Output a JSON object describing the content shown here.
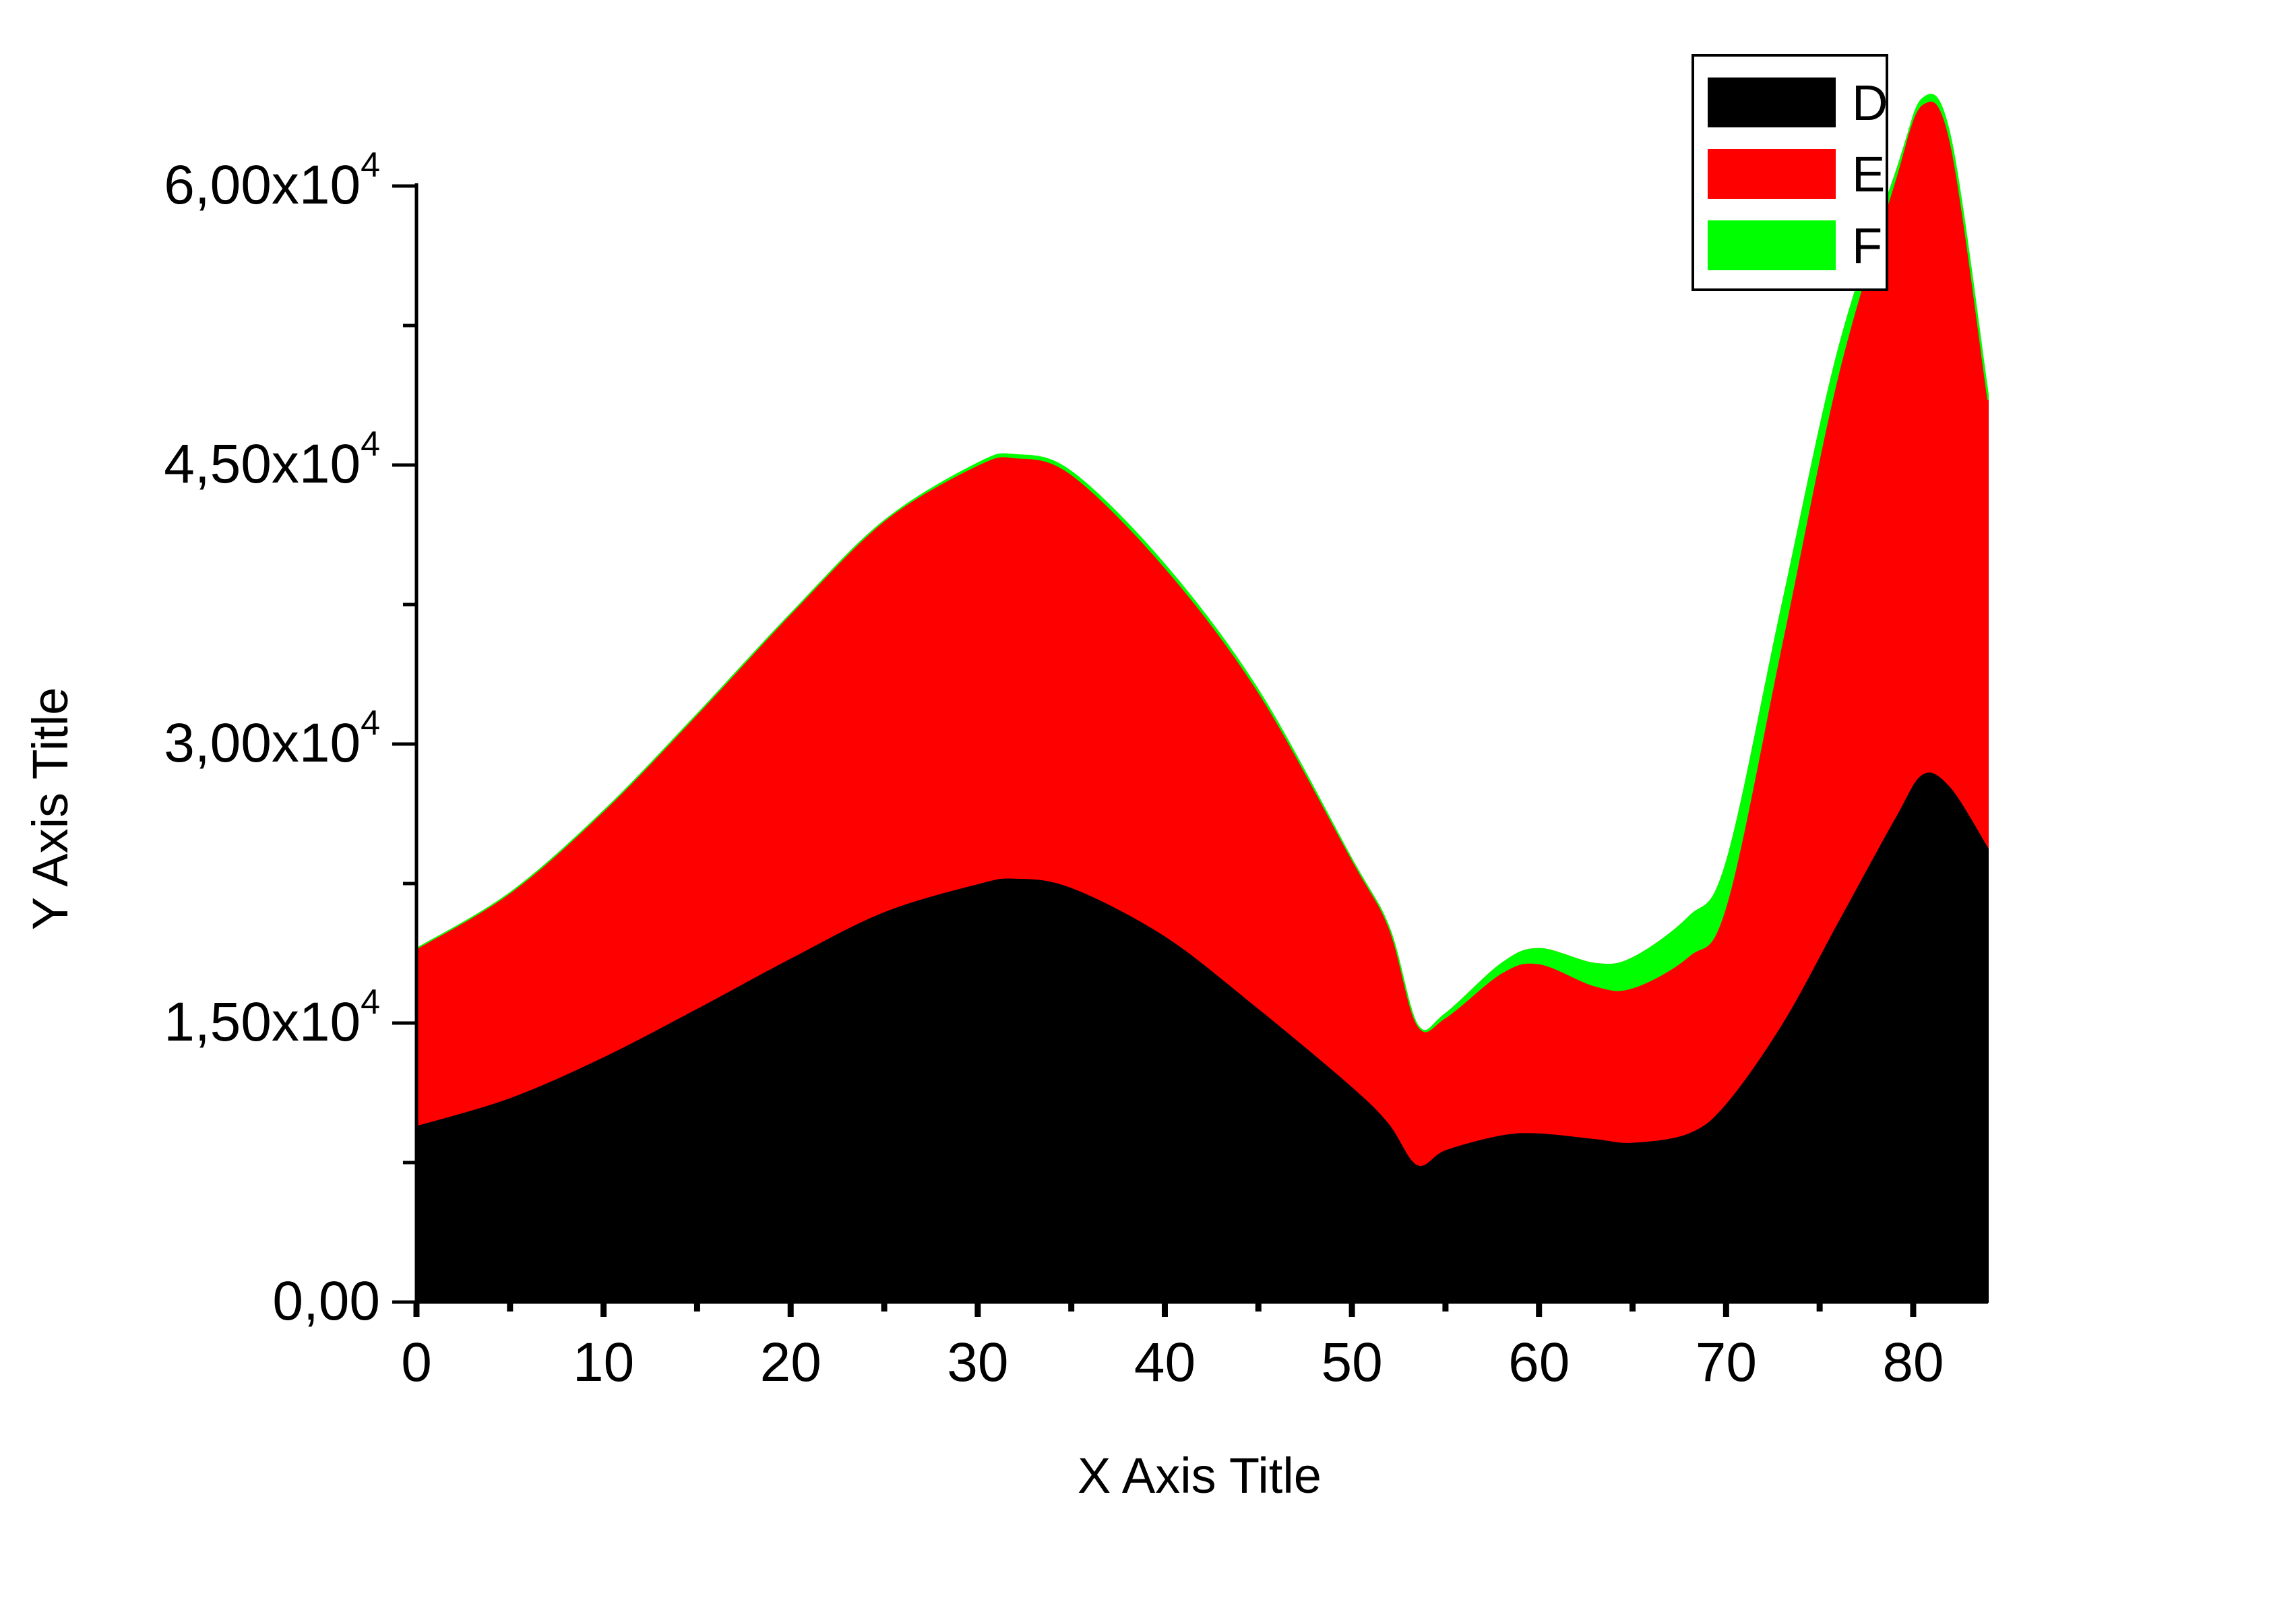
{
  "chart_data": {
    "type": "area",
    "stacked": true,
    "xlabel": "X Axis Title",
    "ylabel": "Y Axis Title",
    "xlim": [
      0,
      84
    ],
    "ylim": [
      0,
      60000
    ],
    "x_ticks": [
      "0",
      "10",
      "20",
      "30",
      "40",
      "50",
      "60",
      "70",
      "80"
    ],
    "y_ticks": [
      {
        "value": 0,
        "base": "0,00",
        "exp": ""
      },
      {
        "value": 15000,
        "base": "1,50x10",
        "exp": "4"
      },
      {
        "value": 30000,
        "base": "3,00x10",
        "exp": "4"
      },
      {
        "value": 45000,
        "base": "4,50x10",
        "exp": "4"
      },
      {
        "value": 60000,
        "base": "6,00x10",
        "exp": "4"
      }
    ],
    "legend_position": "top-right",
    "x": [
      0,
      5,
      10,
      15,
      20,
      25,
      30,
      32,
      35,
      40,
      45,
      50,
      52,
      53.5,
      55,
      58,
      60,
      63,
      65,
      68,
      70,
      73,
      76,
      79,
      80.5,
      82,
      84
    ],
    "series": [
      {
        "name": "D",
        "color": "#000000",
        "values": [
          9500,
          11000,
          13200,
          15800,
          18500,
          21000,
          22500,
          22800,
          22300,
          19700,
          15800,
          11600,
          9600,
          7400,
          8200,
          9000,
          9100,
          8800,
          8600,
          9100,
          10700,
          15000,
          20500,
          26000,
          28400,
          27700,
          24500
        ]
      },
      {
        "name": "E",
        "color": "#ff0000",
        "values": [
          9500,
          11000,
          13200,
          15800,
          18500,
          21000,
          22500,
          22600,
          22200,
          19800,
          17000,
          12200,
          10500,
          7500,
          7300,
          9200,
          9900,
          9400,
          9900,
          11600,
          12900,
          22500,
          30700,
          34500,
          36000,
          34600,
          24000
        ]
      },
      {
        "name": "F",
        "color": "#00ff00",
        "values": [
          0,
          0,
          0,
          0,
          0,
          0,
          100,
          150,
          150,
          150,
          100,
          0,
          0,
          0,
          -200,
          -500,
          -800,
          -1200,
          -1600,
          -2100,
          -2300,
          -2000,
          -1300,
          -300,
          300,
          300,
          300
        ]
      }
    ]
  }
}
